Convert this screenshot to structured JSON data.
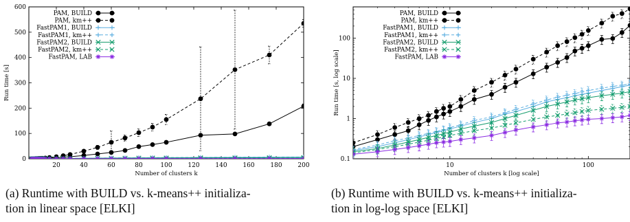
{
  "chart_data": [
    {
      "type": "line",
      "title": "",
      "xlabel": "Number of clusters k",
      "ylabel": "Run time [s]",
      "xlim": [
        0,
        200
      ],
      "ylim": [
        0,
        600
      ],
      "xticks": [
        20,
        40,
        60,
        80,
        100,
        120,
        140,
        160,
        180,
        200
      ],
      "yticks": [
        0,
        100,
        200,
        300,
        400,
        500,
        600
      ],
      "grid": false,
      "legend_position": "top-left",
      "x": [
        2,
        3,
        4,
        5,
        6,
        7,
        8,
        9,
        10,
        12,
        15,
        20,
        25,
        30,
        40,
        50,
        60,
        70,
        80,
        90,
        100,
        125,
        150,
        175,
        200
      ],
      "series": [
        {
          "name": "PAM, BUILD",
          "color": "#000000",
          "dash": "solid",
          "marker": "circle",
          "values": [
            0.2,
            0.3,
            0.4,
            0.5,
            0.7,
            0.9,
            1.1,
            1.3,
            1.5,
            2,
            3,
            4,
            6,
            8,
            13,
            19,
            25,
            33,
            48,
            56,
            65,
            93,
            98,
            138,
            208
          ]
        },
        {
          "name": "PAM, km++",
          "color": "#000000",
          "dash": "dashed",
          "marker": "circle",
          "values": [
            0.25,
            0.4,
            0.6,
            0.8,
            1,
            1.2,
            1.5,
            1.8,
            2,
            3,
            5,
            8,
            12,
            17,
            30,
            45,
            65,
            82,
            103,
            125,
            155,
            237,
            352,
            410,
            535
          ],
          "errors": [
            0.1,
            0.2,
            0.3,
            0.4,
            0.5,
            0.6,
            0.7,
            0.8,
            1,
            1.5,
            2,
            3,
            3,
            4,
            5,
            8,
            45,
            12,
            15,
            15,
            20,
            205,
            235,
            35,
            15
          ]
        },
        {
          "name": "FastPAM1, BUILD",
          "color": "#5aaee0",
          "dash": "solid",
          "marker": "plus",
          "values": [
            0.16,
            0.2,
            0.25,
            0.3,
            0.35,
            0.4,
            0.45,
            0.5,
            0.55,
            0.65,
            0.8,
            1,
            1.3,
            1.5,
            2,
            2.6,
            3,
            3.3,
            3.7,
            4,
            4.3,
            5,
            5.6,
            6.2,
            6.8
          ]
        },
        {
          "name": "FastPAM1, km++",
          "color": "#5aaee0",
          "dash": "dashed",
          "marker": "plus",
          "values": [
            0.17,
            0.22,
            0.28,
            0.33,
            0.38,
            0.43,
            0.48,
            0.53,
            0.6,
            0.7,
            0.9,
            1.1,
            1.4,
            1.7,
            2.3,
            2.9,
            3.4,
            3.8,
            4.2,
            4.6,
            5,
            5.7,
            6.3,
            6.8,
            7.3
          ]
        },
        {
          "name": "FastPAM2, BUILD",
          "color": "#139c6c",
          "dash": "solid",
          "marker": "x",
          "values": [
            0.15,
            0.18,
            0.22,
            0.26,
            0.3,
            0.34,
            0.38,
            0.42,
            0.46,
            0.55,
            0.65,
            0.8,
            1,
            1.2,
            1.6,
            2,
            2.3,
            2.6,
            2.9,
            3.1,
            3.3,
            3.7,
            4,
            4.3,
            4.7
          ]
        },
        {
          "name": "FastPAM2, km++",
          "color": "#139c6c",
          "dash": "dashed",
          "marker": "x",
          "values": [
            0.14,
            0.17,
            0.2,
            0.23,
            0.26,
            0.29,
            0.32,
            0.35,
            0.38,
            0.43,
            0.5,
            0.58,
            0.68,
            0.78,
            0.95,
            1.1,
            1.2,
            1.3,
            1.4,
            1.5,
            1.6,
            1.7,
            1.8,
            1.9,
            2
          ]
        },
        {
          "name": "FastPAM, LAB",
          "color": "#8a2be2",
          "dash": "solid",
          "marker": "star",
          "values": [
            0.13,
            0.15,
            0.17,
            0.19,
            0.21,
            0.23,
            0.25,
            0.26,
            0.27,
            0.3,
            0.33,
            0.38,
            0.45,
            0.52,
            0.62,
            0.7,
            0.78,
            0.82,
            0.88,
            0.92,
            0.96,
            1,
            1.05,
            1.1,
            1.2
          ]
        }
      ]
    },
    {
      "type": "line",
      "title": "",
      "xlabel": "Number of clusters k [log scale]",
      "ylabel": "Run time [s, log scale]",
      "xscale": "log",
      "yscale": "log",
      "xlim": [
        2,
        200
      ],
      "ylim": [
        0.1,
        600
      ],
      "xticks": [
        10,
        100
      ],
      "yticks": [
        0.1,
        1,
        10,
        100
      ],
      "grid": false,
      "legend_position": "top-left",
      "x": [
        2,
        3,
        4,
        5,
        6,
        7,
        8,
        9,
        10,
        12,
        15,
        20,
        25,
        30,
        40,
        50,
        60,
        70,
        80,
        90,
        100,
        125,
        150,
        175,
        200
      ],
      "series": [
        {
          "name": "PAM, BUILD",
          "color": "#000000",
          "dash": "solid",
          "marker": "circle",
          "values": [
            0.2,
            0.3,
            0.4,
            0.5,
            0.7,
            0.9,
            1.1,
            1.3,
            1.5,
            2,
            3,
            4,
            6,
            8,
            13,
            19,
            25,
            33,
            48,
            56,
            65,
            93,
            98,
            138,
            208
          ]
        },
        {
          "name": "PAM, km++",
          "color": "#000000",
          "dash": "dashed",
          "marker": "circle",
          "values": [
            0.25,
            0.4,
            0.6,
            0.8,
            1,
            1.2,
            1.5,
            1.8,
            2,
            3,
            5,
            8,
            12,
            17,
            30,
            45,
            65,
            82,
            103,
            125,
            155,
            237,
            352,
            410,
            535
          ]
        },
        {
          "name": "FastPAM1, BUILD",
          "color": "#5aaee0",
          "dash": "solid",
          "marker": "plus",
          "values": [
            0.16,
            0.2,
            0.25,
            0.3,
            0.35,
            0.4,
            0.45,
            0.5,
            0.55,
            0.65,
            0.8,
            1,
            1.3,
            1.5,
            2,
            2.6,
            3,
            3.3,
            3.7,
            4,
            4.3,
            5,
            5.6,
            6.2,
            6.8
          ]
        },
        {
          "name": "FastPAM1, km++",
          "color": "#5aaee0",
          "dash": "dashed",
          "marker": "plus",
          "values": [
            0.17,
            0.22,
            0.28,
            0.33,
            0.38,
            0.43,
            0.48,
            0.53,
            0.6,
            0.7,
            0.9,
            1.1,
            1.4,
            1.7,
            2.3,
            2.9,
            3.4,
            3.8,
            4.2,
            4.6,
            5,
            5.7,
            6.3,
            6.8,
            7.3
          ]
        },
        {
          "name": "FastPAM2, BUILD",
          "color": "#139c6c",
          "dash": "solid",
          "marker": "x",
          "values": [
            0.15,
            0.18,
            0.22,
            0.26,
            0.3,
            0.34,
            0.38,
            0.42,
            0.46,
            0.55,
            0.65,
            0.8,
            1,
            1.2,
            1.6,
            2,
            2.3,
            2.6,
            2.9,
            3.1,
            3.3,
            3.7,
            4,
            4.3,
            4.7
          ]
        },
        {
          "name": "FastPAM2, km++",
          "color": "#139c6c",
          "dash": "dashed",
          "marker": "x",
          "values": [
            0.14,
            0.17,
            0.2,
            0.23,
            0.26,
            0.29,
            0.32,
            0.35,
            0.38,
            0.43,
            0.5,
            0.58,
            0.68,
            0.78,
            0.95,
            1.1,
            1.2,
            1.3,
            1.4,
            1.5,
            1.6,
            1.7,
            1.8,
            1.9,
            2
          ]
        },
        {
          "name": "FastPAM, LAB",
          "color": "#8a2be2",
          "dash": "solid",
          "marker": "star",
          "values": [
            0.13,
            0.15,
            0.17,
            0.19,
            0.21,
            0.23,
            0.25,
            0.26,
            0.27,
            0.3,
            0.33,
            0.38,
            0.45,
            0.52,
            0.62,
            0.7,
            0.78,
            0.82,
            0.88,
            0.92,
            0.96,
            1,
            1.05,
            1.1,
            1.2
          ]
        }
      ]
    }
  ],
  "captions": {
    "a": {
      "line1": "(a) Runtime with BUILD vs. k-means++ initializa-",
      "line2": "tion in linear space [ELKI]"
    },
    "b": {
      "line1": "(b) Runtime with BUILD vs. k-means++ initializa-",
      "line2": "tion in log-log space [ELKI]"
    }
  }
}
